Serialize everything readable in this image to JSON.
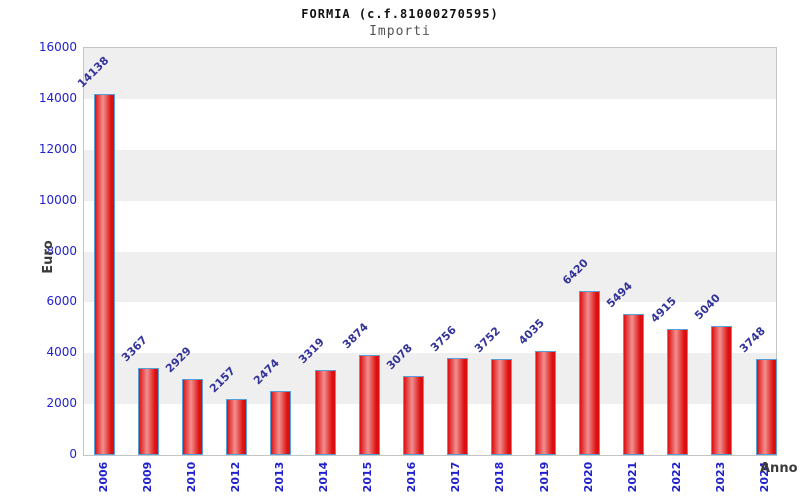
{
  "header": {
    "title": "FORMIA (c.f.81000270595)",
    "subtitle": "Importi"
  },
  "chart_data": {
    "type": "bar",
    "title": "FORMIA (c.f.81000270595)",
    "subtitle": "Importi",
    "xlabel": "Anno",
    "ylabel": "Euro",
    "categories": [
      "2006",
      "2009",
      "2010",
      "2012",
      "2013",
      "2014",
      "2015",
      "2016",
      "2017",
      "2018",
      "2019",
      "2020",
      "2021",
      "2022",
      "2023",
      "2024"
    ],
    "values": [
      14138,
      3367,
      2929,
      2157,
      2474,
      3319,
      3874,
      3078,
      3756,
      3752,
      4035,
      6420,
      5494,
      4915,
      5040,
      3748
    ],
    "ylim": [
      0,
      16000
    ],
    "yticks": [
      0,
      2000,
      4000,
      6000,
      8000,
      10000,
      12000,
      14000,
      16000
    ],
    "grid": "alternating-horizontal-bands",
    "legend_position": "none",
    "value_labels_shown": true,
    "colors": {
      "bar_fill_edge": "#dd1010",
      "bar_fill_center": "#f29090",
      "bar_border": "#55a0d8",
      "tick_label": "#2222cc",
      "value_label": "#333399",
      "band_gray": "#efefef",
      "band_white": "#ffffff",
      "plot_border": "#c4c4c4",
      "title_color": "#111111",
      "subtitle_color": "#555555",
      "axis_label_color": "#3a3a3a"
    }
  }
}
